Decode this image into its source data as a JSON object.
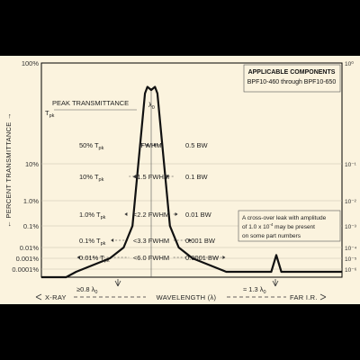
{
  "chart_data": {
    "type": "line",
    "title": "",
    "xlabel": "WAVELENGTH (λ)",
    "ylabel": "PERCENT TRANSMITTANCE",
    "y_scale": "log",
    "ylim": [
      0.0001,
      100
    ],
    "y_ticks_left": [
      "100%",
      "10%",
      "1.0%",
      "0.1%",
      "0.01%",
      "0.001%",
      "0.0001%"
    ],
    "y_ticks_right": [
      "10⁰",
      "10⁻¹",
      "10⁻²",
      "10⁻³",
      "10⁻⁴",
      "10⁻⁵",
      "10⁻⁶"
    ],
    "x_region_left": "X-RAY",
    "x_region_right": "FAR I.R.",
    "grid": true,
    "series": [
      {
        "x": [
          -6.0,
          -3.3,
          -2.2,
          -1.5,
          -0.5,
          -0.3,
          0.0,
          0.3,
          0.5,
          1.5,
          2.2,
          3.3,
          6.0,
          8.5,
          9.6,
          10.0,
          10.4,
          11.5,
          14.0
        ],
        "y": [
          0.0001,
          0.001,
          0.01,
          0.1,
          50,
          58,
          54,
          58,
          50,
          0.1,
          0.01,
          0.001,
          0.0001,
          0.0001,
          0.0001,
          0.002,
          0.0001,
          0.0001,
          0.0001
        ]
      }
    ]
  },
  "box": {
    "title": "APPLICABLE COMPONENTS",
    "subtitle": "BPF10-460 through BPF10-650"
  },
  "peak_label": "PEAK TRANSMITTANCE",
  "tpk": "T",
  "tpk_sub": "pk",
  "lambda0": "λ",
  "lambda0_sub": "0",
  "levels": [
    {
      "left_pre": "50% T",
      "left_sub": "pk",
      "width": "FWHM",
      "bw": "0.5 BW"
    },
    {
      "left_pre": "10% T",
      "left_sub": "pk",
      "width": "<1.5 FWHM",
      "bw": "0.1 BW"
    },
    {
      "left_pre": "1.0% T",
      "left_sub": "pk",
      "width": "<2.2 FWHM",
      "bw": "0.01 BW"
    },
    {
      "left_pre": "0.1% T",
      "left_sub": "pk",
      "width": "<3.3 FWHM",
      "bw": "0.001 BW"
    },
    {
      "left_pre": "0.01% T",
      "left_sub": "pk",
      "width": "<6.0 FWHM",
      "bw": "0.0001 BW"
    }
  ],
  "leak_note": {
    "line1": "A cross-over leak with amplitude",
    "line2_pre": "of 1.0 x 10",
    "line2_sup": "-4",
    "line2_post": " may be present",
    "line3": "on some part numbers"
  },
  "marker_left": {
    "pre": "≥0.8 λ",
    "sub": "0"
  },
  "marker_right": {
    "pre": "≈ 1.3 λ",
    "sub": "0"
  },
  "colors": {
    "background": "#fbf3de",
    "curve": "#111111",
    "grid": "#c9c2ae",
    "frame": "#000000"
  }
}
